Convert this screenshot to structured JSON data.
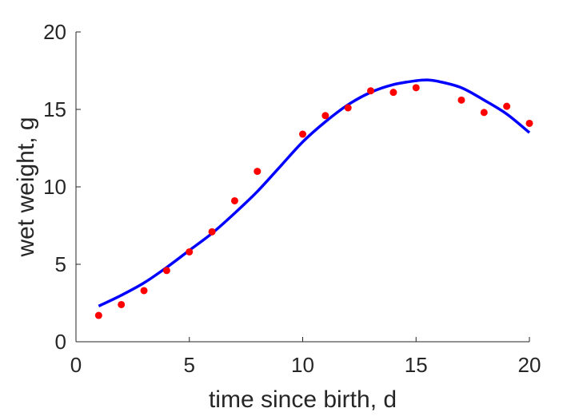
{
  "chart_data": {
    "type": "scatter",
    "title": "",
    "xlabel": "time since birth, d",
    "ylabel": "wet weight, g",
    "xlim": [
      0,
      20
    ],
    "ylim": [
      0,
      20
    ],
    "xticks": [
      0,
      5,
      10,
      15,
      20
    ],
    "yticks": [
      0,
      5,
      10,
      15,
      20
    ],
    "xtick_labels": [
      "0",
      "5",
      "10",
      "15",
      "20"
    ],
    "ytick_labels": [
      "0",
      "5",
      "10",
      "15",
      "20"
    ],
    "grid": false,
    "series": [
      {
        "type": "scatter",
        "color": "#ff0000",
        "x": [
          1,
          2,
          3,
          4,
          5,
          6,
          7,
          8,
          10,
          11,
          12,
          13,
          14,
          15,
          17,
          18,
          19,
          20
        ],
        "y": [
          1.7,
          2.4,
          3.3,
          4.6,
          5.8,
          7.1,
          9.1,
          11.0,
          13.4,
          14.6,
          15.1,
          16.2,
          16.1,
          16.4,
          15.6,
          14.8,
          15.2,
          14.1
        ]
      },
      {
        "type": "line",
        "color": "#0000ff",
        "x": [
          1,
          2,
          3,
          4,
          5,
          6,
          7,
          8,
          9,
          10,
          11,
          12,
          13,
          14,
          15,
          15.5,
          16,
          17,
          18,
          19,
          20
        ],
        "y": [
          2.3,
          3.0,
          3.8,
          4.8,
          5.9,
          7.0,
          8.3,
          9.7,
          11.3,
          12.9,
          14.2,
          15.3,
          16.1,
          16.6,
          16.85,
          16.9,
          16.8,
          16.4,
          15.6,
          14.7,
          13.5
        ]
      }
    ]
  }
}
